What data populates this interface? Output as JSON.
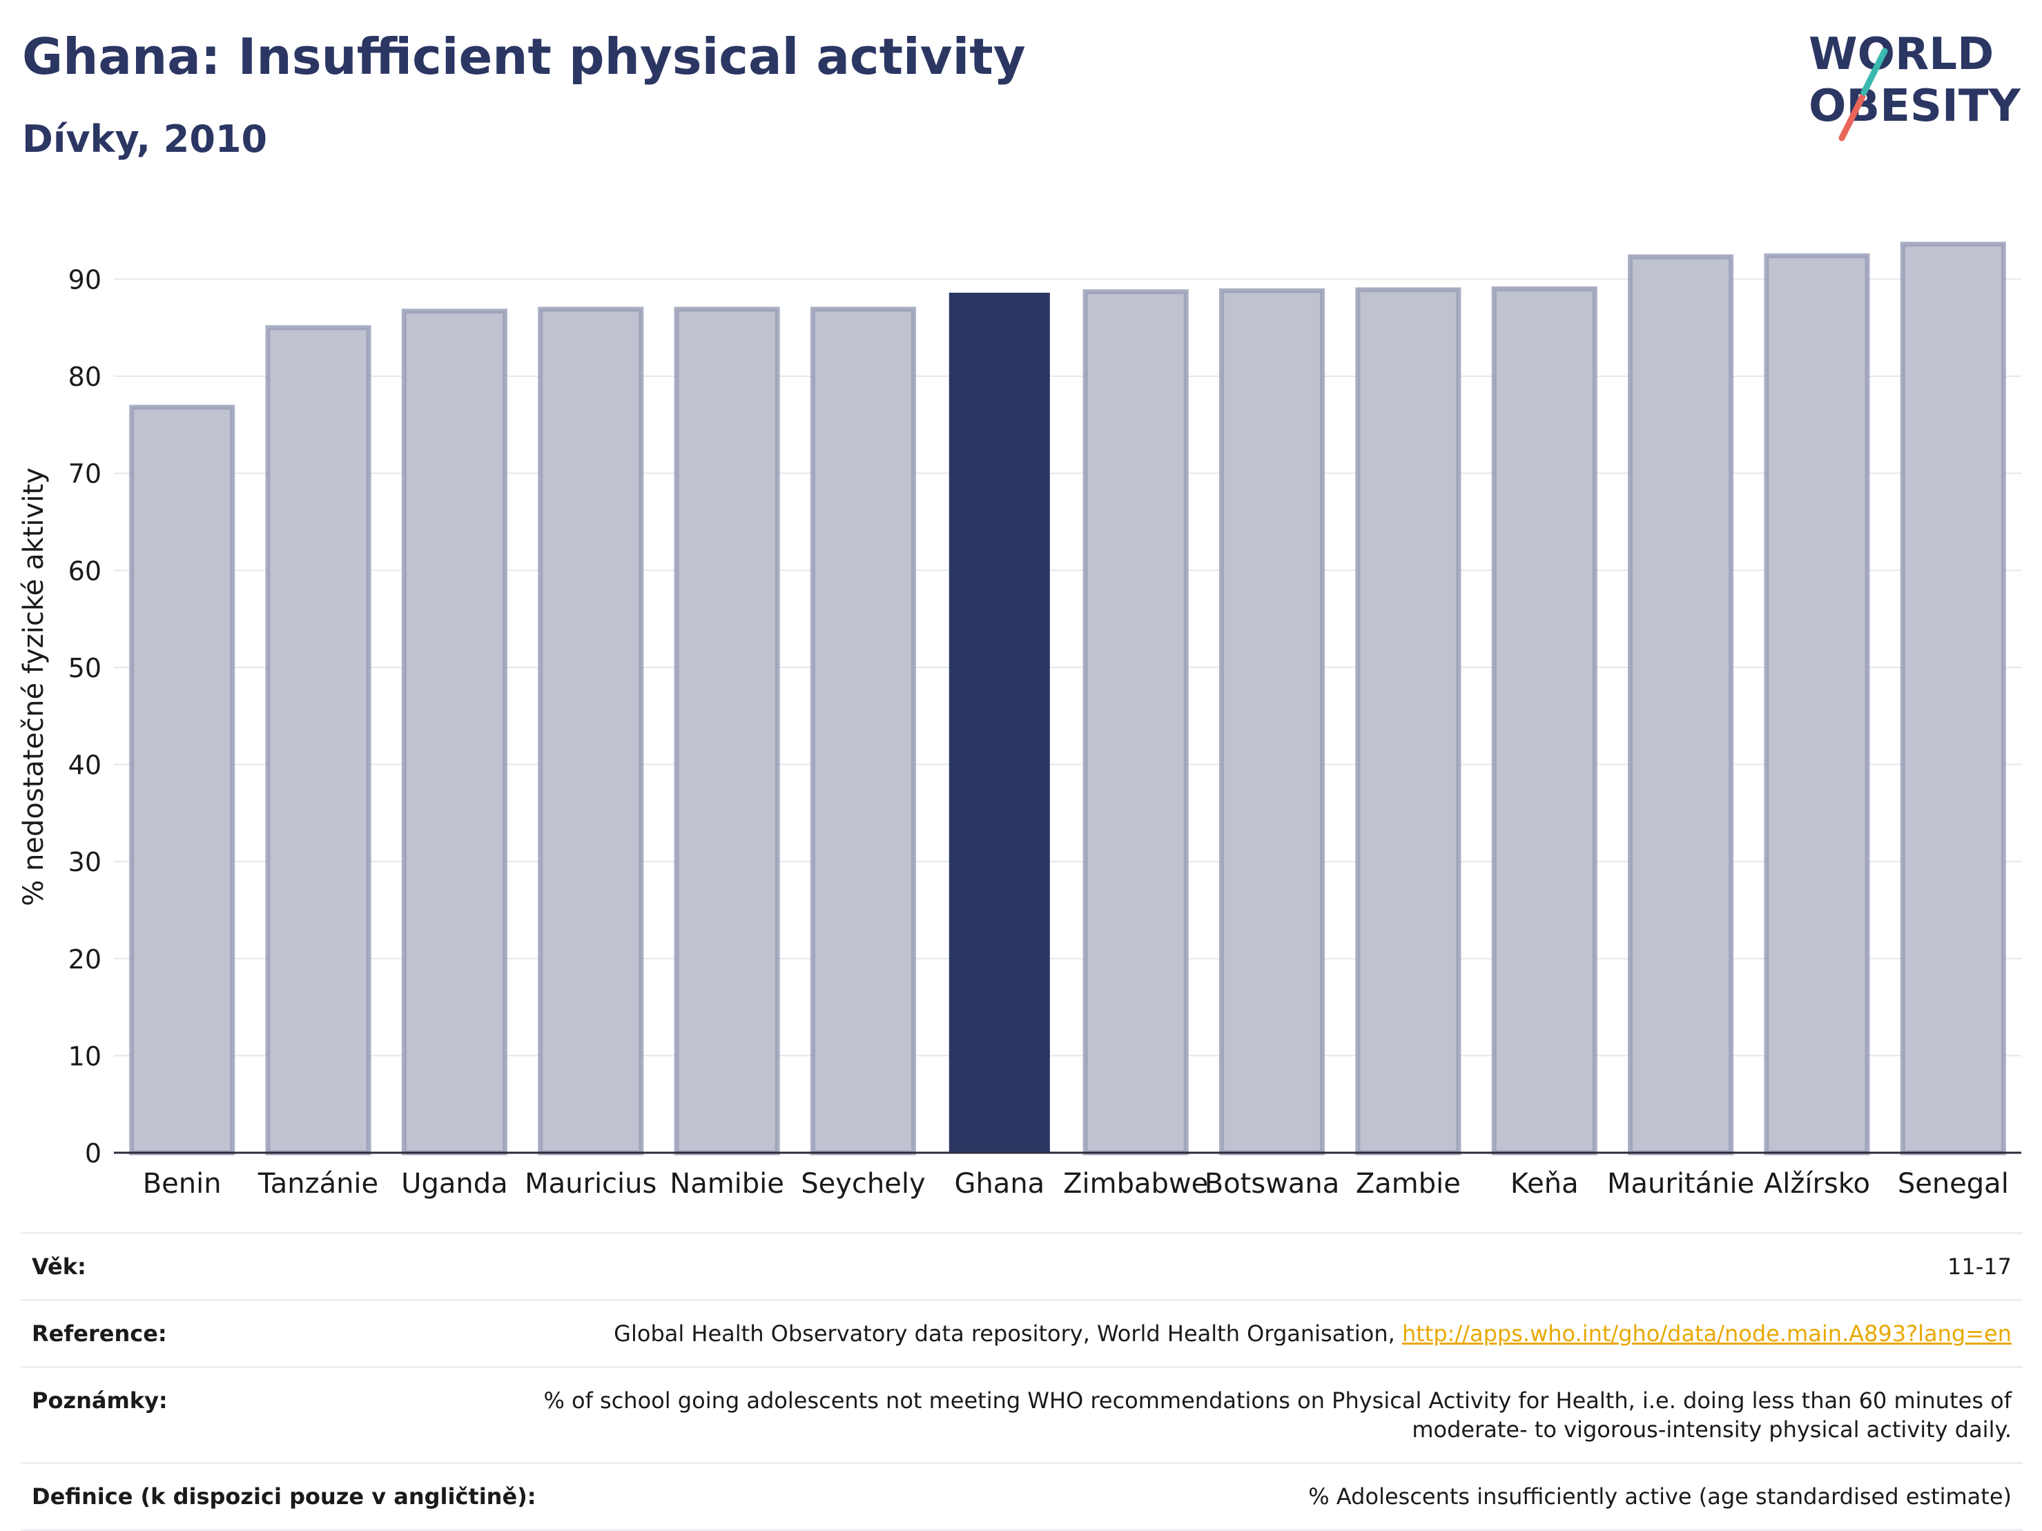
{
  "header": {
    "title": "Ghana: Insufficient physical activity",
    "subtitle": "Dívky, 2010"
  },
  "logo": {
    "line1": "WORLD",
    "line2": "OBESITY",
    "colors": {
      "text": "#2b3663",
      "slash_teal": "#3bb8b0",
      "slash_red": "#e8665a"
    }
  },
  "chart_data": {
    "type": "bar",
    "categories": [
      "Benin",
      "Tanzánie",
      "Uganda",
      "Mauricius",
      "Namibie",
      "Seychely",
      "Ghana",
      "Zimbabwe",
      "Botswana",
      "Zambie",
      "Keňa",
      "Mauritánie",
      "Alžírsko",
      "Senegal"
    ],
    "values": [
      76.8,
      85.0,
      86.7,
      86.9,
      86.9,
      86.9,
      88.6,
      88.7,
      88.8,
      88.9,
      89.0,
      92.3,
      92.4,
      93.6
    ],
    "highlight": "Ghana",
    "xlabel": "",
    "ylabel": "% nedostatečné fyzické aktivity",
    "ylim": [
      0,
      96
    ],
    "yticks": [
      0,
      10,
      20,
      30,
      40,
      50,
      60,
      70,
      80,
      90
    ],
    "grid": true,
    "colors": {
      "bar": "#bfc2cf",
      "bar_border": "#9ba0b8",
      "highlight": "#2b3663"
    }
  },
  "info": {
    "rows": [
      {
        "label": "Věk:",
        "value": "11-17"
      },
      {
        "label": "Reference:",
        "value": "Global Health Observatory data repository, World Health Organisation, ",
        "link": "http://apps.who.int/gho/data/node.main.A893?lang=en"
      },
      {
        "label": "Poznámky:",
        "value": "% of school going adolescents not meeting WHO recommendations on Physical Activity for Health, i.e. doing less than 60 minutes of moderate- to vigorous-intensity physical activity daily."
      },
      {
        "label": "Definice (k dispozici pouze v angličtině):",
        "value": "% Adolescents insufficiently active (age standardised estimate)"
      }
    ]
  }
}
